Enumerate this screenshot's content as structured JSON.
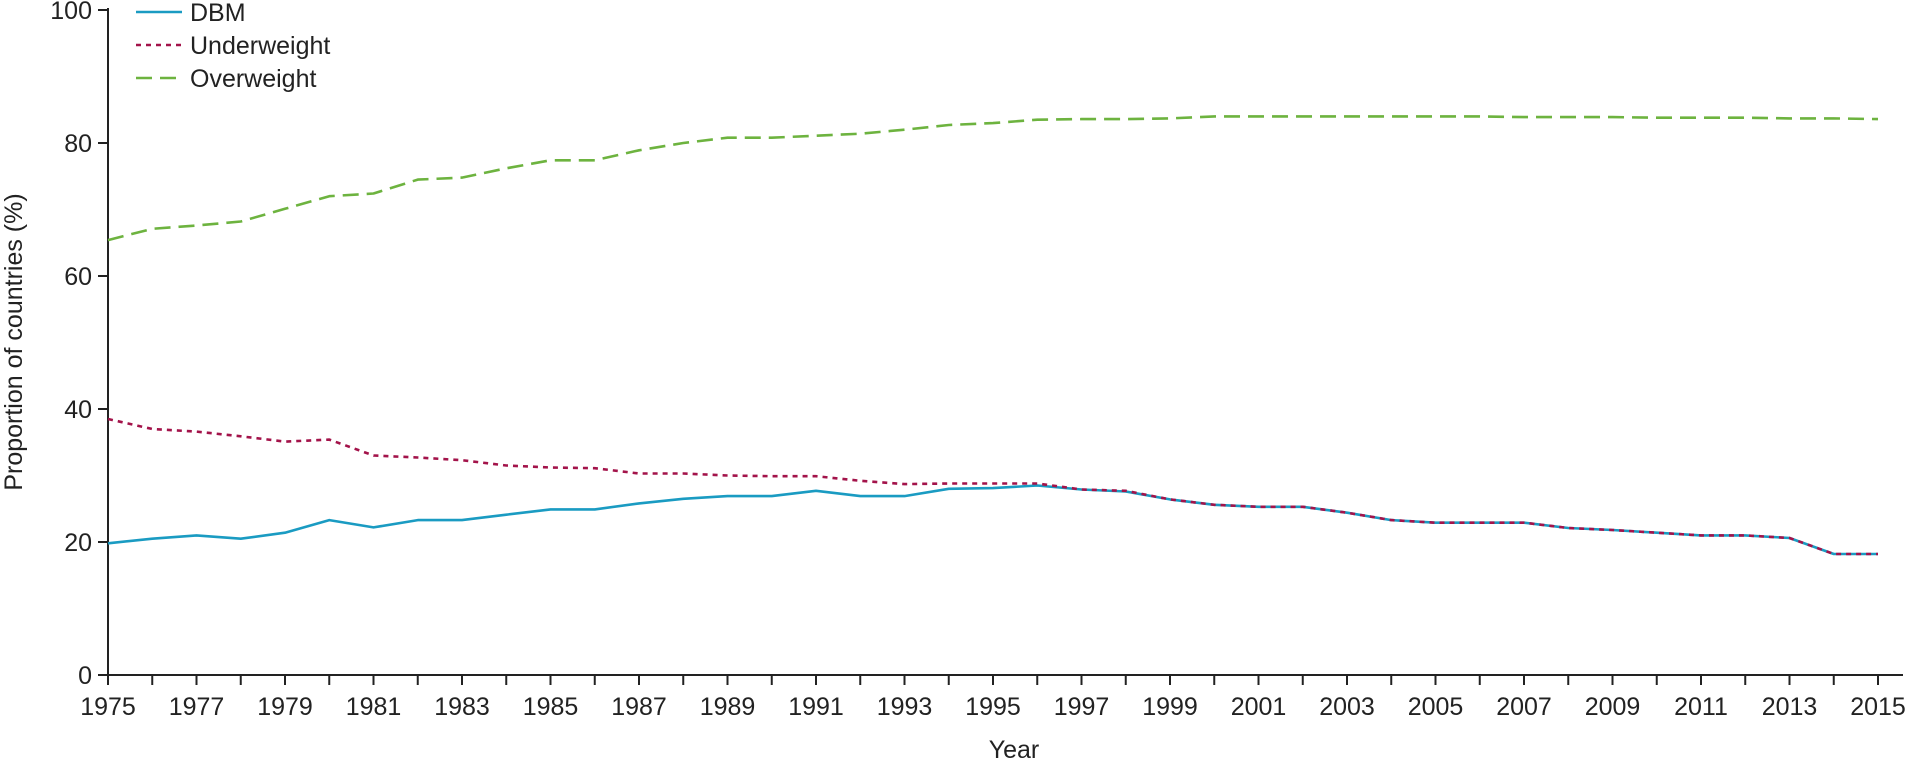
{
  "chart_data": {
    "type": "line",
    "xlabel": "Year",
    "ylabel": "Proportion of countries (%)",
    "xlim": [
      1975,
      2015
    ],
    "ylim": [
      0,
      100
    ],
    "yticks": [
      0,
      20,
      40,
      60,
      80,
      100
    ],
    "xtick_labels": [
      "1975",
      "1977",
      "1979",
      "1981",
      "1983",
      "1985",
      "1987",
      "1989",
      "1991",
      "1993",
      "1995",
      "1997",
      "1999",
      "2001",
      "2003",
      "2005",
      "2007",
      "2009",
      "2011",
      "2013",
      "2015"
    ],
    "x": [
      1975,
      1976,
      1977,
      1978,
      1979,
      1980,
      1981,
      1982,
      1983,
      1984,
      1985,
      1986,
      1987,
      1988,
      1989,
      1990,
      1991,
      1992,
      1993,
      1994,
      1995,
      1996,
      1997,
      1998,
      1999,
      2000,
      2001,
      2002,
      2003,
      2004,
      2005,
      2006,
      2007,
      2008,
      2009,
      2010,
      2011,
      2012,
      2013,
      2014,
      2015
    ],
    "legend_position": "top-left",
    "series": [
      {
        "name": "DBM",
        "color": "#1a9bc2",
        "dash": "solid",
        "values": [
          19.8,
          20.5,
          21.0,
          20.5,
          21.4,
          23.3,
          22.2,
          23.3,
          23.3,
          24.1,
          24.9,
          24.9,
          25.8,
          26.5,
          26.9,
          26.9,
          27.7,
          26.9,
          26.9,
          28.0,
          28.1,
          28.5,
          27.9,
          27.6,
          26.4,
          25.6,
          25.3,
          25.3,
          24.4,
          23.3,
          22.9,
          22.9,
          22.9,
          22.1,
          21.8,
          21.4,
          21.0,
          21.0,
          20.6,
          18.2,
          18.2
        ]
      },
      {
        "name": "Underweight",
        "color": "#a3134a",
        "dash": "dotted",
        "values": [
          38.5,
          37.0,
          36.6,
          35.9,
          35.1,
          35.4,
          33.0,
          32.7,
          32.3,
          31.5,
          31.2,
          31.1,
          30.3,
          30.3,
          30.0,
          29.9,
          29.9,
          29.2,
          28.7,
          28.8,
          28.8,
          28.8,
          27.9,
          27.7,
          26.4,
          25.6,
          25.3,
          25.3,
          24.4,
          23.3,
          22.9,
          22.9,
          22.9,
          22.1,
          21.8,
          21.4,
          21.0,
          21.0,
          20.6,
          18.2,
          18.2
        ]
      },
      {
        "name": "Overweight",
        "color": "#6db33f",
        "dash": "dashed",
        "values": [
          65.4,
          67.1,
          67.6,
          68.2,
          70.1,
          72.0,
          72.4,
          74.5,
          74.8,
          76.2,
          77.4,
          77.4,
          78.9,
          80.0,
          80.8,
          80.8,
          81.1,
          81.4,
          82.0,
          82.7,
          83.0,
          83.5,
          83.6,
          83.6,
          83.7,
          84.0,
          84.0,
          84.0,
          84.0,
          84.0,
          84.0,
          84.0,
          83.9,
          83.9,
          83.9,
          83.8,
          83.8,
          83.8,
          83.7,
          83.7,
          83.6
        ]
      }
    ]
  }
}
